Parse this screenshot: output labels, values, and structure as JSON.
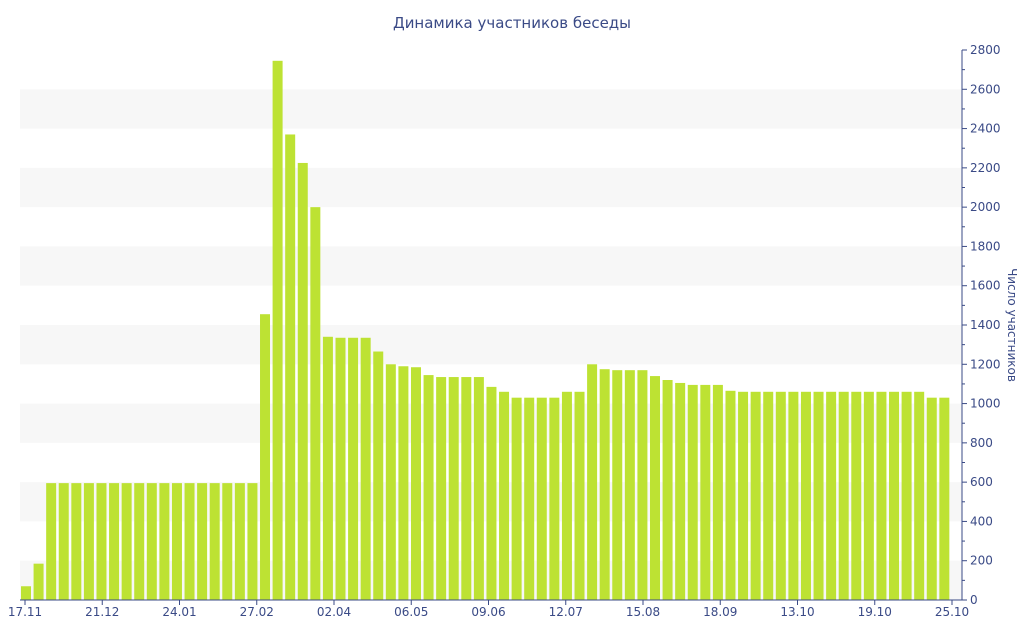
{
  "chart_data": {
    "type": "bar",
    "title": "Динамика участников беседы",
    "xlabel": "",
    "ylabel": "Число участников",
    "ylim": [
      0,
      2800
    ],
    "y_ticks": [
      0,
      200,
      400,
      600,
      800,
      1000,
      1200,
      1400,
      1600,
      1800,
      2000,
      2200,
      2400,
      2600,
      2800
    ],
    "y_axis_side": "right",
    "grid": "alternating horizontal bands",
    "bar_color": "#bde233",
    "band_color": "#f7f7f7",
    "text_color": "#3a4a86",
    "x_tick_labels": [
      "17.11",
      "21.12",
      "24.01",
      "27.02",
      "02.04",
      "06.05",
      "09.06",
      "12.07",
      "15.08",
      "18.09",
      "13.10",
      "19.10",
      "25.10"
    ],
    "values": [
      70,
      185,
      595,
      595,
      595,
      595,
      595,
      595,
      595,
      595,
      595,
      595,
      595,
      595,
      595,
      595,
      595,
      595,
      595,
      1455,
      2745,
      2370,
      2225,
      2000,
      1340,
      1335,
      1335,
      1335,
      1265,
      1200,
      1190,
      1185,
      1145,
      1135,
      1135,
      1135,
      1135,
      1085,
      1060,
      1030,
      1030,
      1030,
      1030,
      1060,
      1060,
      1200,
      1175,
      1170,
      1170,
      1170,
      1140,
      1120,
      1105,
      1095,
      1095,
      1095,
      1065,
      1060,
      1060,
      1060,
      1060,
      1060,
      1060,
      1060,
      1060,
      1060,
      1060,
      1060,
      1060,
      1060,
      1060,
      1060,
      1030,
      1030
    ]
  }
}
